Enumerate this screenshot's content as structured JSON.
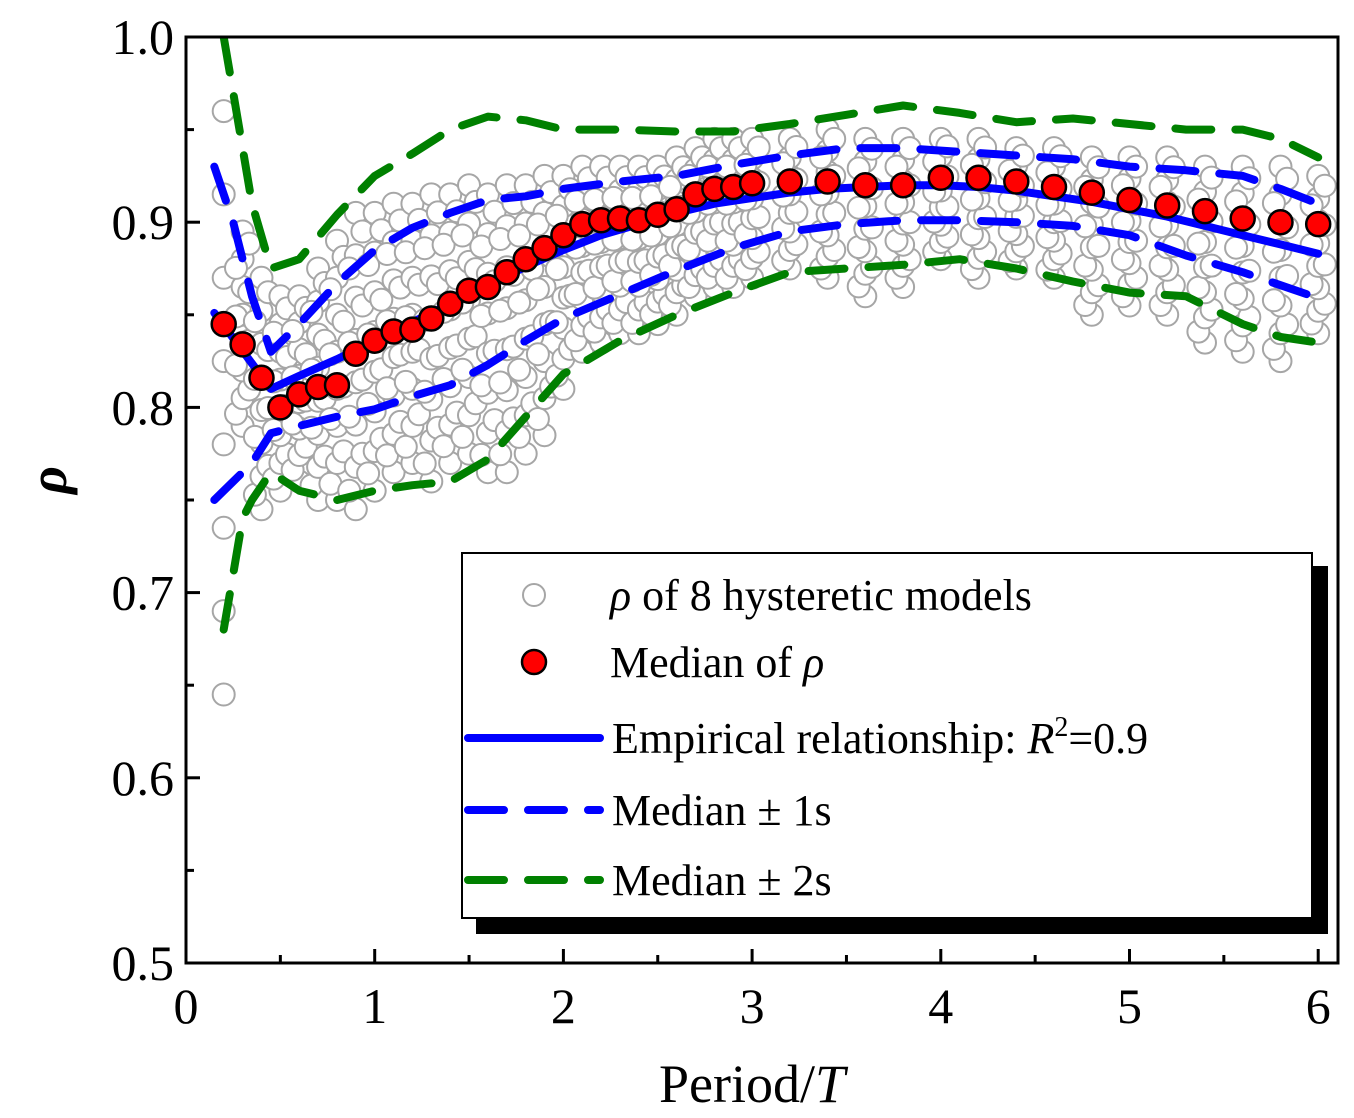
{
  "chart_data": {
    "type": "scatter",
    "title": "",
    "xlabel": "Period/",
    "xlabel_italic": "T",
    "ylabel": "ρ",
    "xlim": [
      0,
      6.1
    ],
    "ylim": [
      0.5,
      1.0
    ],
    "xticks": [
      "0",
      "1",
      "2",
      "3",
      "4",
      "5",
      "6"
    ],
    "yticks": [
      "0.5",
      "0.6",
      "0.7",
      "0.8",
      "0.9",
      "1.0"
    ],
    "legend": {
      "placement": "bottom-right",
      "entries": {
        "scatter": {
          "pre": "",
          "italic": "ρ",
          "post": " of 8 hysteretic models"
        },
        "median": {
          "pre": "Median of ",
          "italic": "ρ",
          "post": ""
        },
        "empirical": {
          "pre": "Empirical relationship: ",
          "italic": "R",
          "sup": "2",
          "post": "=0.9"
        },
        "sigma1": {
          "pre": "Median ± 1s",
          "italic": "",
          "post": ""
        },
        "sigma2": {
          "pre": "Median ± 2s",
          "italic": "",
          "post": ""
        }
      }
    },
    "colors": {
      "scatter": "#a6a6a6",
      "median_fill": "#ff0000",
      "empirical": "#0000ff",
      "sigma1": "#0000ff",
      "sigma2": "#008000"
    },
    "median_points": {
      "x": [
        0.2,
        0.3,
        0.4,
        0.5,
        0.6,
        0.7,
        0.8,
        0.9,
        1.0,
        1.1,
        1.2,
        1.3,
        1.4,
        1.5,
        1.6,
        1.7,
        1.8,
        1.9,
        2.0,
        2.1,
        2.2,
        2.3,
        2.4,
        2.5,
        2.6,
        2.7,
        2.8,
        2.9,
        3.0,
        3.2,
        3.4,
        3.6,
        3.8,
        4.0,
        4.2,
        4.4,
        4.6,
        4.8,
        5.0,
        5.2,
        5.4,
        5.6,
        5.8,
        6.0
      ],
      "y": [
        0.845,
        0.834,
        0.816,
        0.8,
        0.807,
        0.811,
        0.812,
        0.829,
        0.836,
        0.841,
        0.842,
        0.848,
        0.856,
        0.863,
        0.865,
        0.873,
        0.88,
        0.886,
        0.893,
        0.899,
        0.901,
        0.902,
        0.901,
        0.904,
        0.907,
        0.915,
        0.918,
        0.919,
        0.921,
        0.922,
        0.922,
        0.92,
        0.92,
        0.924,
        0.924,
        0.922,
        0.919,
        0.916,
        0.912,
        0.909,
        0.906,
        0.902,
        0.9,
        0.899
      ]
    },
    "empirical_curve": {
      "x": [
        0.15,
        0.45,
        0.6,
        0.8,
        1.0,
        1.2,
        1.4,
        1.6,
        1.8,
        2.0,
        2.2,
        2.4,
        2.6,
        2.8,
        3.0,
        3.2,
        3.4,
        3.6,
        3.8,
        4.0,
        4.2,
        4.4,
        4.6,
        4.8,
        5.0,
        5.2,
        5.4,
        5.6,
        5.8,
        6.0
      ],
      "y": [
        0.851,
        0.81,
        0.817,
        0.826,
        0.836,
        0.846,
        0.856,
        0.866,
        0.876,
        0.885,
        0.893,
        0.899,
        0.905,
        0.91,
        0.913,
        0.916,
        0.918,
        0.919,
        0.92,
        0.92,
        0.919,
        0.917,
        0.914,
        0.911,
        0.907,
        0.903,
        0.898,
        0.893,
        0.888,
        0.883
      ]
    },
    "sigma1_upper": {
      "x": [
        0.15,
        0.25,
        0.35,
        0.45,
        0.6,
        0.8,
        1.0,
        1.2,
        1.4,
        1.6,
        1.8,
        2.0,
        2.3,
        2.6,
        2.9,
        3.2,
        3.5,
        3.8,
        4.1,
        4.4,
        4.7,
        5.0,
        5.3,
        5.6,
        5.8,
        6.0
      ],
      "y": [
        0.93,
        0.9,
        0.86,
        0.83,
        0.845,
        0.867,
        0.885,
        0.897,
        0.905,
        0.912,
        0.914,
        0.918,
        0.922,
        0.925,
        0.931,
        0.936,
        0.94,
        0.94,
        0.938,
        0.936,
        0.934,
        0.93,
        0.928,
        0.925,
        0.918,
        0.91
      ]
    },
    "sigma1_lower": {
      "x": [
        0.15,
        0.25,
        0.35,
        0.45,
        0.6,
        0.8,
        1.0,
        1.2,
        1.4,
        1.6,
        1.8,
        2.0,
        2.3,
        2.6,
        2.9,
        3.2,
        3.5,
        3.8,
        4.1,
        4.4,
        4.7,
        5.0,
        5.3,
        5.6,
        5.8,
        6.0
      ],
      "y": [
        0.75,
        0.76,
        0.77,
        0.786,
        0.79,
        0.795,
        0.799,
        0.806,
        0.812,
        0.823,
        0.836,
        0.848,
        0.861,
        0.874,
        0.886,
        0.895,
        0.899,
        0.901,
        0.901,
        0.9,
        0.898,
        0.893,
        0.882,
        0.873,
        0.866,
        0.859
      ]
    },
    "sigma2_upper": {
      "x": [
        0.2,
        0.25,
        0.3,
        0.35,
        0.45,
        0.6,
        0.8,
        1.0,
        1.2,
        1.4,
        1.6,
        1.8,
        2.0,
        2.3,
        2.6,
        2.9,
        3.2,
        3.5,
        3.8,
        4.1,
        4.4,
        4.7,
        5.0,
        5.3,
        5.6,
        5.8,
        6.0
      ],
      "y": [
        1.0,
        0.97,
        0.94,
        0.91,
        0.875,
        0.88,
        0.904,
        0.925,
        0.937,
        0.95,
        0.957,
        0.955,
        0.95,
        0.95,
        0.949,
        0.949,
        0.953,
        0.958,
        0.963,
        0.959,
        0.954,
        0.956,
        0.953,
        0.95,
        0.95,
        0.945,
        0.935
      ]
    },
    "sigma2_lower": {
      "x": [
        0.2,
        0.25,
        0.3,
        0.35,
        0.45,
        0.6,
        0.8,
        1.0,
        1.2,
        1.4,
        1.6,
        1.8,
        2.0,
        2.3,
        2.6,
        2.9,
        3.2,
        3.5,
        3.8,
        4.1,
        4.4,
        4.7,
        5.0,
        5.3,
        5.6,
        5.8,
        6.0
      ],
      "y": [
        0.68,
        0.71,
        0.74,
        0.75,
        0.765,
        0.755,
        0.75,
        0.755,
        0.758,
        0.76,
        0.772,
        0.795,
        0.818,
        0.836,
        0.85,
        0.862,
        0.873,
        0.875,
        0.877,
        0.88,
        0.875,
        0.868,
        0.862,
        0.86,
        0.845,
        0.838,
        0.835
      ]
    },
    "scatter_models": {
      "count": 8,
      "period": [
        0.2,
        0.3,
        0.4,
        0.5,
        0.6,
        0.7,
        0.8,
        0.9,
        1.0,
        1.1,
        1.2,
        1.3,
        1.4,
        1.5,
        1.6,
        1.7,
        1.8,
        1.9,
        2.0,
        2.1,
        2.2,
        2.3,
        2.4,
        2.5,
        2.6,
        2.7,
        2.8,
        2.9,
        3.0,
        3.2,
        3.4,
        3.6,
        3.8,
        4.0,
        4.2,
        4.4,
        4.6,
        4.8,
        5.0,
        5.2,
        5.4,
        5.6,
        5.8,
        6.0
      ],
      "rho_min": [
        0.645,
        0.79,
        0.745,
        0.755,
        0.76,
        0.75,
        0.75,
        0.745,
        0.755,
        0.765,
        0.77,
        0.76,
        0.77,
        0.775,
        0.765,
        0.765,
        0.775,
        0.785,
        0.81,
        0.83,
        0.835,
        0.84,
        0.84,
        0.845,
        0.85,
        0.86,
        0.865,
        0.865,
        0.87,
        0.875,
        0.87,
        0.86,
        0.865,
        0.88,
        0.87,
        0.875,
        0.87,
        0.85,
        0.855,
        0.85,
        0.835,
        0.83,
        0.825,
        0.84
      ],
      "rho_max": [
        0.96,
        0.895,
        0.87,
        0.86,
        0.86,
        0.875,
        0.89,
        0.905,
        0.905,
        0.91,
        0.91,
        0.915,
        0.915,
        0.92,
        0.915,
        0.92,
        0.92,
        0.925,
        0.925,
        0.93,
        0.93,
        0.93,
        0.93,
        0.93,
        0.935,
        0.94,
        0.945,
        0.945,
        0.945,
        0.945,
        0.95,
        0.945,
        0.945,
        0.945,
        0.945,
        0.94,
        0.94,
        0.935,
        0.935,
        0.935,
        0.93,
        0.93,
        0.93,
        0.925
      ]
    }
  }
}
